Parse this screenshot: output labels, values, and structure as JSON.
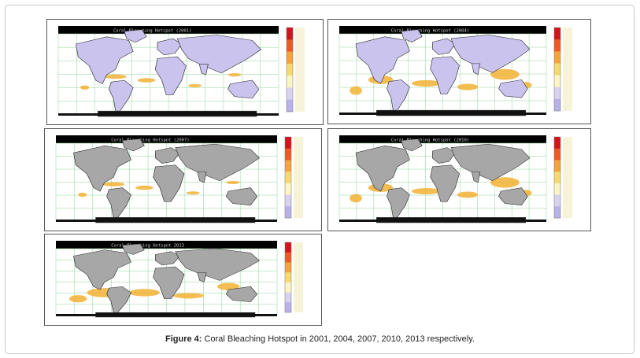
{
  "figure": {
    "caption_label": "Figure 4:",
    "caption_text": " Coral Bleaching Hotspot in 2001, 2004, 2007, 2010, 2013 respectively."
  },
  "panels": [
    {
      "title": "Coral Bleaching Hotspot (2001)",
      "land_color": "#c9c3ee",
      "hot": "low"
    },
    {
      "title": "Coral Bleaching Hotspot (2004)",
      "land_color": "#c9c3ee",
      "hot": "mid"
    },
    {
      "title": "Coral Bleaching Hotspot (2007)",
      "land_color": "#a7a7a7",
      "hot": "low"
    },
    {
      "title": "Coral Bleaching Hotspot (2010)",
      "land_color": "#a7a7a7",
      "hot": "mid"
    },
    {
      "title": "Coral Bleaching Hotspot 2013",
      "land_color": "#a7a7a7",
      "hot": "high"
    }
  ],
  "colors": {
    "ocean": "#ffffff",
    "grid": "#8fd49a",
    "hotspot": "#f2b134",
    "header": "#000000",
    "colorbar": [
      "#d4141a",
      "#ef5a23",
      "#f5a33a",
      "#f8d870",
      "#fbf4c4",
      "#d8d2f0",
      "#b9b2e8"
    ]
  }
}
